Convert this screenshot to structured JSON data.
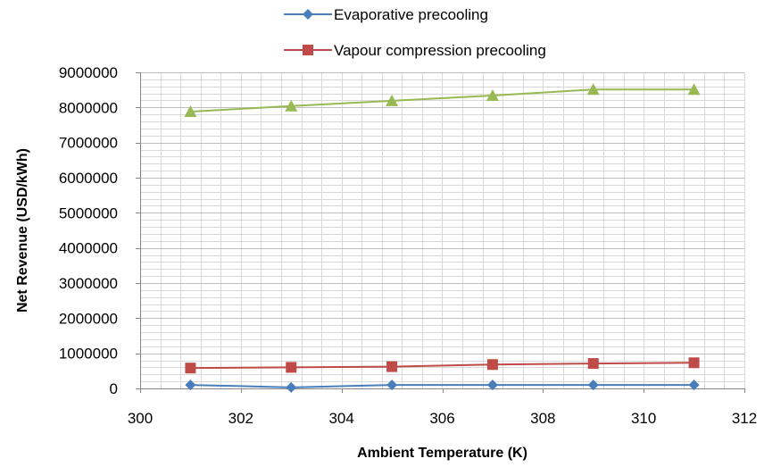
{
  "chart_data": {
    "type": "line",
    "title": "",
    "xlabel": "Ambient Temperature (K)",
    "ylabel": "Net Revenue (USD/kWh)",
    "xlim": [
      300,
      312
    ],
    "ylim": [
      0,
      9000000
    ],
    "x_ticks": [
      300,
      302,
      304,
      306,
      308,
      310,
      312
    ],
    "y_ticks": [
      0,
      1000000,
      2000000,
      3000000,
      4000000,
      5000000,
      6000000,
      7000000,
      8000000,
      9000000
    ],
    "x_tick_labels": [
      "300",
      "302",
      "304",
      "306",
      "308",
      "310",
      "312"
    ],
    "y_tick_labels": [
      "0",
      "1000000",
      "2000000",
      "3000000",
      "4000000",
      "5000000",
      "6000000",
      "7000000",
      "8000000",
      "9000000"
    ],
    "grid": true,
    "legend_position": "top",
    "x": [
      301,
      303,
      305,
      307,
      309,
      311
    ],
    "series": [
      {
        "name": "Evaporative precooling",
        "color": "#4a7ebb",
        "marker": "diamond",
        "values": [
          100000,
          30000,
          100000,
          100000,
          100000,
          100000
        ]
      },
      {
        "name": "Vapour compression precooling",
        "color": "#be4b48",
        "marker": "square",
        "values": [
          580000,
          600000,
          620000,
          680000,
          710000,
          730000
        ]
      },
      {
        "name": "",
        "color": "#98b954",
        "marker": "triangle",
        "values": [
          7880000,
          8040000,
          8190000,
          8340000,
          8510000,
          8510000
        ]
      }
    ]
  }
}
